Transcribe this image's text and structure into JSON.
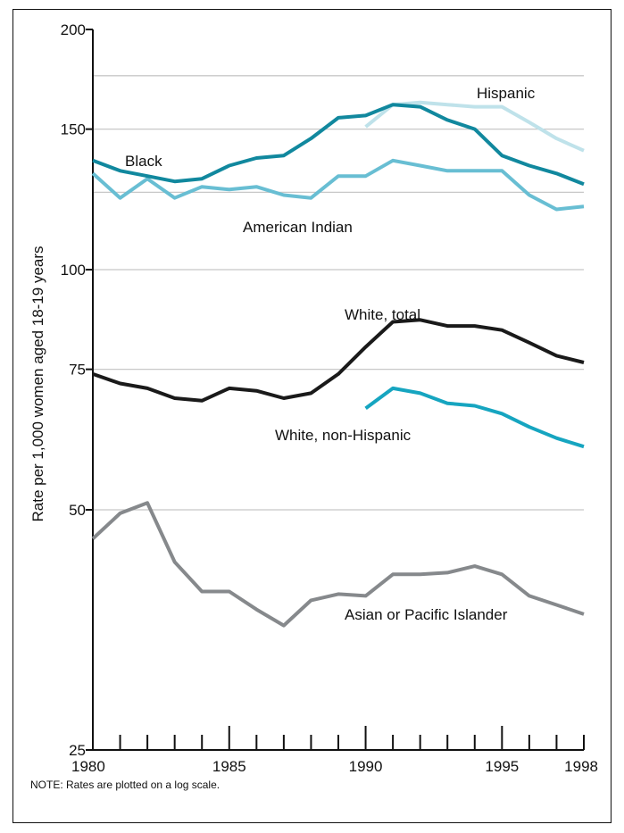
{
  "note": "NOTE: Rates are plotted on a log scale.",
  "chart_data": {
    "type": "line",
    "ylabel": "Rate per 1,000 women aged 18-19 years",
    "xlabel": "",
    "yscale": "log",
    "ylim": [
      25,
      200
    ],
    "xlim": [
      1980,
      1998
    ],
    "yticks": [
      25,
      50,
      75,
      100,
      150,
      200
    ],
    "gridlines": [
      50,
      75,
      100,
      125,
      150,
      175
    ],
    "xtick_labels": [
      1980,
      1985,
      1990,
      1995,
      1998
    ],
    "grid": true,
    "series": [
      {
        "name": "Black",
        "color": "#11889e",
        "x": [
          1980,
          1981,
          1982,
          1983,
          1984,
          1985,
          1986,
          1987,
          1988,
          1989,
          1990,
          1991,
          1992,
          1993,
          1994,
          1995,
          1996,
          1997,
          1998
        ],
        "values": [
          137,
          133,
          131,
          129,
          130,
          135,
          138,
          139,
          146,
          155,
          156,
          161,
          160,
          154,
          150,
          139,
          135,
          132,
          128
        ]
      },
      {
        "name": "Hispanic",
        "color": "#bfe2ea",
        "x": [
          1990,
          1991,
          1992,
          1993,
          1994,
          1995,
          1996,
          1997,
          1998
        ],
        "values": [
          151,
          161,
          162,
          161,
          160,
          160,
          153,
          146,
          141
        ]
      },
      {
        "name": "American Indian",
        "color": "#68bed3",
        "x": [
          1980,
          1981,
          1982,
          1983,
          1984,
          1985,
          1986,
          1987,
          1988,
          1989,
          1990,
          1991,
          1992,
          1993,
          1994,
          1995,
          1996,
          1997,
          1998
        ],
        "values": [
          132,
          123,
          130,
          123,
          127,
          126,
          127,
          124,
          123,
          131,
          131,
          137,
          135,
          133,
          133,
          133,
          124,
          119,
          120
        ]
      },
      {
        "name": "White, total",
        "color": "#1a1a1a",
        "x": [
          1980,
          1981,
          1982,
          1983,
          1984,
          1985,
          1986,
          1987,
          1988,
          1989,
          1990,
          1991,
          1992,
          1993,
          1994,
          1995,
          1996,
          1997,
          1998
        ],
        "values": [
          74,
          72,
          71,
          69,
          68.5,
          71,
          70.5,
          69,
          70,
          74,
          80,
          86,
          86.5,
          85,
          85,
          84,
          81,
          78,
          76.5
        ]
      },
      {
        "name": "White, non-Hispanic",
        "color": "#16a5c0",
        "x": [
          1990,
          1991,
          1992,
          1993,
          1994,
          1995,
          1996,
          1997,
          1998
        ],
        "values": [
          67,
          71,
          70,
          68,
          67.5,
          66,
          63.5,
          61.5,
          60
        ]
      },
      {
        "name": "Asian or Pacific Islander",
        "color": "#86898c",
        "x": [
          1980,
          1981,
          1982,
          1983,
          1984,
          1985,
          1986,
          1987,
          1988,
          1989,
          1990,
          1991,
          1992,
          1993,
          1994,
          1995,
          1996,
          1997,
          1998
        ],
        "values": [
          46,
          49.5,
          51,
          43,
          39.5,
          39.5,
          37.5,
          35.8,
          38.5,
          39.2,
          39,
          41.5,
          41.5,
          41.7,
          42.5,
          41.5,
          39,
          38,
          37
        ]
      }
    ]
  }
}
